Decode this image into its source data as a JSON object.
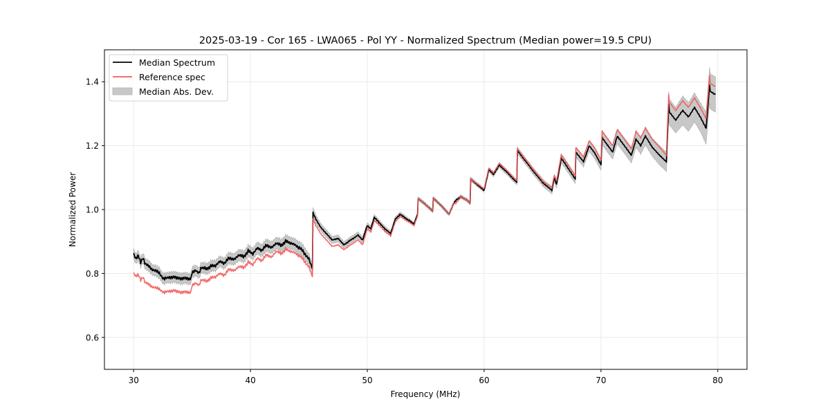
{
  "chart_data": {
    "type": "line",
    "title": "2025-03-19 - Cor 165 - LWA065 - Pol YY - Normalized Spectrum (Median power=19.5 CPU)",
    "xlabel": "Frequency (MHz)",
    "ylabel": "Normalized Power",
    "xlim": [
      27.5,
      82.5
    ],
    "ylim": [
      0.5,
      1.5
    ],
    "xticks": [
      30,
      40,
      50,
      60,
      70,
      80
    ],
    "xtick_labels": [
      "30",
      "40",
      "50",
      "60",
      "70",
      "80"
    ],
    "yticks": [
      0.6,
      0.8,
      1.0,
      1.2,
      1.4
    ],
    "ytick_labels": [
      "0.6",
      "0.8",
      "1.0",
      "1.2",
      "1.4"
    ],
    "grid": true,
    "legend": {
      "placement": "top-left",
      "entries": [
        {
          "label": "Median Spectrum",
          "kind": "line",
          "color": "#000000"
        },
        {
          "label": "Reference spec",
          "kind": "line",
          "color": "#f05a5a"
        },
        {
          "label": "Median Abs. Dev.",
          "kind": "band",
          "color": "#c8c8c8"
        }
      ]
    },
    "colors": {
      "median": "#000000",
      "reference": "#f05a5a",
      "overlap": "#8b0000",
      "mad_band": "#c8c8c8",
      "mad_edge": "#a8a8a8"
    },
    "x": [
      30.0,
      30.2,
      30.4,
      30.6,
      30.8,
      31.0,
      31.3,
      31.6,
      31.9,
      32.2,
      32.5,
      32.7,
      33.0,
      33.5,
      34.0,
      34.5,
      34.9,
      35.0,
      35.3,
      35.6,
      35.8,
      36.2,
      36.6,
      37.0,
      37.4,
      37.8,
      38.2,
      38.6,
      39.0,
      39.4,
      39.8,
      40.2,
      40.6,
      41.0,
      41.4,
      41.8,
      42.2,
      42.6,
      43.0,
      43.4,
      43.8,
      44.2,
      44.6,
      45.0,
      45.3,
      45.35,
      45.6,
      46.0,
      46.5,
      47.0,
      47.5,
      48.0,
      48.4,
      48.8,
      49.2,
      49.6,
      50.0,
      50.3,
      50.6,
      51.0,
      51.5,
      52.0,
      52.4,
      52.8,
      53.2,
      53.6,
      54.0,
      54.3,
      54.35,
      55.0,
      55.6,
      55.65,
      56.4,
      57.0,
      57.4,
      57.6,
      58.0,
      58.5,
      58.8,
      58.85,
      59.5,
      60.0,
      60.4,
      60.8,
      61.3,
      62.0,
      62.8,
      62.85,
      64.0,
      65.0,
      65.8,
      66.0,
      66.2,
      66.6,
      67.0,
      67.8,
      67.85,
      68.5,
      69.0,
      69.5,
      70.0,
      70.1,
      70.6,
      71.0,
      71.4,
      72.0,
      72.6,
      73.0,
      73.4,
      73.8,
      74.4,
      75.0,
      75.6,
      75.8,
      75.85,
      76.4,
      77.0,
      77.5,
      78.0,
      78.5,
      79.0,
      79.3,
      79.35,
      79.8
    ],
    "series": [
      {
        "name": "Median Spectrum",
        "values": [
          0.86,
          0.845,
          0.855,
          0.835,
          0.85,
          0.83,
          0.825,
          0.812,
          0.808,
          0.8,
          0.785,
          0.785,
          0.788,
          0.79,
          0.785,
          0.787,
          0.782,
          0.805,
          0.81,
          0.8,
          0.818,
          0.815,
          0.822,
          0.825,
          0.838,
          0.832,
          0.85,
          0.843,
          0.858,
          0.852,
          0.87,
          0.862,
          0.88,
          0.872,
          0.89,
          0.88,
          0.895,
          0.888,
          0.9,
          0.896,
          0.89,
          0.88,
          0.865,
          0.845,
          0.815,
          0.99,
          0.97,
          0.945,
          0.925,
          0.905,
          0.91,
          0.89,
          0.9,
          0.91,
          0.92,
          0.905,
          0.95,
          0.94,
          0.975,
          0.96,
          0.94,
          0.925,
          0.97,
          0.985,
          0.975,
          0.965,
          0.955,
          0.985,
          1.035,
          1.015,
          0.995,
          1.035,
          1.01,
          0.985,
          1.02,
          1.03,
          1.04,
          1.03,
          1.02,
          1.095,
          1.075,
          1.06,
          1.125,
          1.11,
          1.14,
          1.115,
          1.085,
          1.185,
          1.13,
          1.085,
          1.06,
          1.1,
          1.08,
          1.16,
          1.14,
          1.095,
          1.18,
          1.15,
          1.2,
          1.175,
          1.14,
          1.225,
          1.2,
          1.18,
          1.23,
          1.2,
          1.17,
          1.22,
          1.2,
          1.23,
          1.195,
          1.17,
          1.15,
          1.33,
          1.305,
          1.28,
          1.31,
          1.29,
          1.32,
          1.29,
          1.255,
          1.39,
          1.37,
          1.36
        ]
      },
      {
        "name": "Reference spec",
        "values": [
          0.8,
          0.79,
          0.795,
          0.78,
          0.79,
          0.772,
          0.768,
          0.758,
          0.755,
          0.75,
          0.742,
          0.742,
          0.745,
          0.748,
          0.742,
          0.744,
          0.74,
          0.765,
          0.77,
          0.762,
          0.78,
          0.776,
          0.785,
          0.79,
          0.8,
          0.795,
          0.815,
          0.808,
          0.822,
          0.818,
          0.835,
          0.828,
          0.848,
          0.84,
          0.86,
          0.85,
          0.87,
          0.862,
          0.875,
          0.87,
          0.865,
          0.855,
          0.84,
          0.82,
          0.79,
          0.97,
          0.95,
          0.925,
          0.905,
          0.885,
          0.89,
          0.875,
          0.885,
          0.895,
          0.905,
          0.89,
          0.94,
          0.93,
          0.965,
          0.952,
          0.932,
          0.918,
          0.962,
          0.978,
          0.97,
          0.96,
          0.95,
          0.98,
          1.035,
          1.015,
          0.995,
          1.035,
          1.01,
          0.985,
          1.02,
          1.02,
          1.04,
          1.03,
          1.02,
          1.095,
          1.078,
          1.065,
          1.13,
          1.115,
          1.145,
          1.12,
          1.09,
          1.19,
          1.135,
          1.09,
          1.068,
          1.108,
          1.09,
          1.17,
          1.15,
          1.105,
          1.195,
          1.165,
          1.215,
          1.19,
          1.155,
          1.245,
          1.22,
          1.2,
          1.25,
          1.22,
          1.19,
          1.245,
          1.225,
          1.255,
          1.22,
          1.195,
          1.17,
          1.36,
          1.335,
          1.31,
          1.34,
          1.32,
          1.35,
          1.32,
          1.285,
          1.42,
          1.395,
          1.385
        ]
      },
      {
        "name": "Median Abs. Dev.",
        "values": [
          0.015,
          0.015,
          0.015,
          0.015,
          0.015,
          0.016,
          0.016,
          0.016,
          0.016,
          0.016,
          0.016,
          0.016,
          0.016,
          0.016,
          0.016,
          0.016,
          0.016,
          0.016,
          0.016,
          0.016,
          0.016,
          0.016,
          0.016,
          0.016,
          0.016,
          0.016,
          0.017,
          0.017,
          0.017,
          0.017,
          0.017,
          0.017,
          0.018,
          0.018,
          0.018,
          0.018,
          0.018,
          0.018,
          0.018,
          0.018,
          0.018,
          0.018,
          0.018,
          0.016,
          0.014,
          0.015,
          0.013,
          0.012,
          0.012,
          0.011,
          0.011,
          0.01,
          0.01,
          0.01,
          0.01,
          0.01,
          0.009,
          0.009,
          0.009,
          0.008,
          0.008,
          0.008,
          0.008,
          0.007,
          0.007,
          0.006,
          0.006,
          0.006,
          0.006,
          0.005,
          0.005,
          0.005,
          0.005,
          0.005,
          0.005,
          0.005,
          0.005,
          0.005,
          0.005,
          0.006,
          0.006,
          0.006,
          0.007,
          0.007,
          0.008,
          0.008,
          0.008,
          0.01,
          0.01,
          0.011,
          0.011,
          0.012,
          0.012,
          0.014,
          0.014,
          0.014,
          0.016,
          0.016,
          0.018,
          0.018,
          0.018,
          0.022,
          0.022,
          0.022,
          0.024,
          0.024,
          0.024,
          0.026,
          0.026,
          0.028,
          0.028,
          0.03,
          0.03,
          0.04,
          0.04,
          0.04,
          0.045,
          0.045,
          0.045,
          0.045,
          0.05,
          0.055,
          0.055,
          0.055
        ]
      }
    ]
  }
}
